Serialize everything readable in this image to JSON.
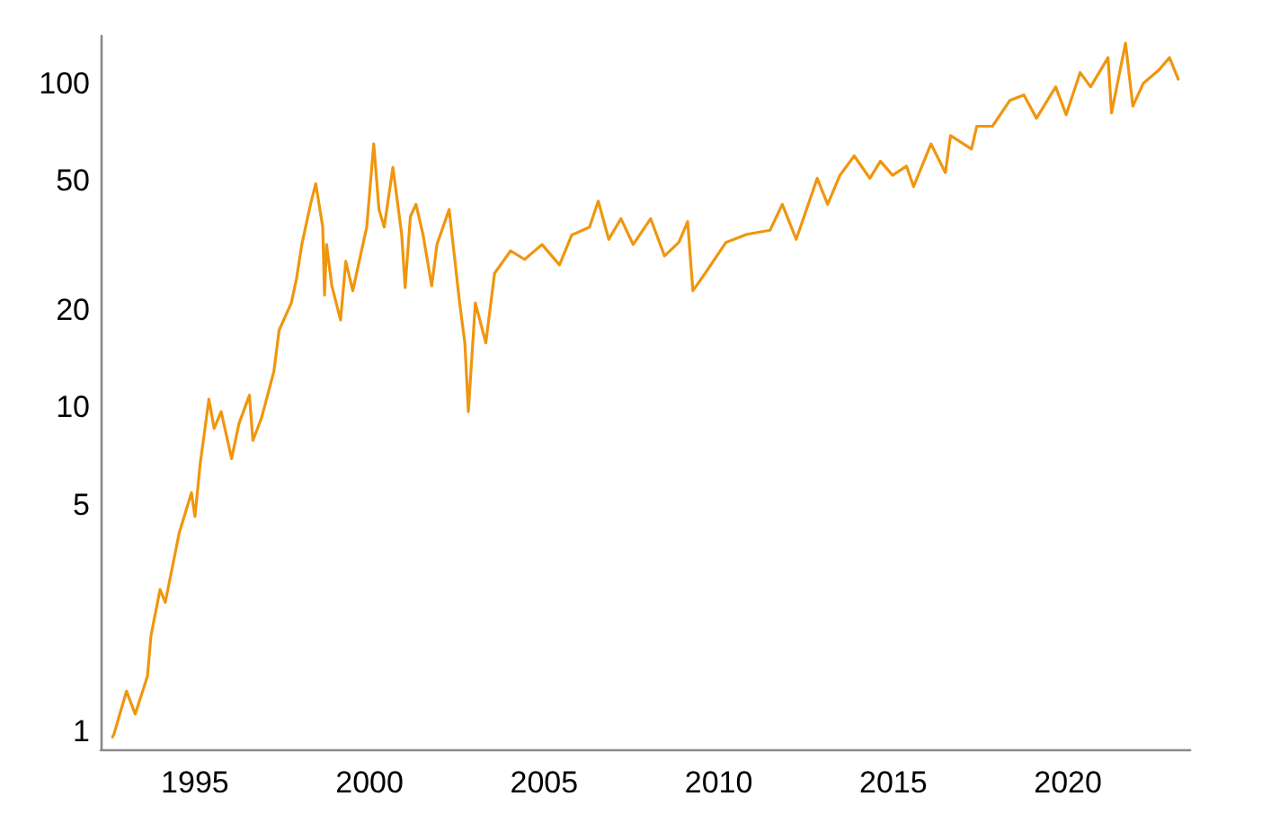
{
  "chart_data": {
    "type": "line",
    "log": "y",
    "grid": false,
    "marker": "none",
    "line_style": "solid",
    "xlim": [
      1992.3,
      2023.5
    ],
    "xticks": [
      1995,
      2000,
      2005,
      2010,
      2015,
      2020
    ],
    "ylim": [
      0.88,
      140
    ],
    "yticks": [
      1,
      5,
      10,
      20,
      50,
      100
    ],
    "series": [
      {
        "color": "#f0960e",
        "x": [
          1992.64,
          1992.68,
          1993.04,
          1993.29,
          1993.64,
          1993.74,
          1994.0,
          1994.15,
          1994.55,
          1994.9,
          1995.0,
          1995.15,
          1995.4,
          1995.55,
          1995.75,
          1996.05,
          1996.26,
          1996.56,
          1996.66,
          1996.91,
          1997.26,
          1997.41,
          1997.76,
          1997.91,
          1998.06,
          1998.31,
          1998.46,
          1998.66,
          1998.71,
          1998.77,
          1998.92,
          1999.17,
          1999.32,
          1999.52,
          1999.77,
          1999.92,
          2000.12,
          2000.27,
          2000.42,
          2000.67,
          2000.92,
          2001.02,
          2001.17,
          2001.33,
          2001.53,
          2001.78,
          2001.93,
          2002.28,
          2002.58,
          2002.73,
          2002.83,
          2003.03,
          2003.33,
          2003.58,
          2004.04,
          2004.44,
          2004.94,
          2005.44,
          2005.79,
          2006.3,
          2006.55,
          2006.85,
          2007.2,
          2007.55,
          2008.05,
          2008.45,
          2008.86,
          2009.11,
          2009.26,
          2009.61,
          2010.21,
          2010.81,
          2011.47,
          2011.82,
          2012.22,
          2012.82,
          2013.12,
          2013.47,
          2013.88,
          2014.33,
          2014.63,
          2014.98,
          2015.38,
          2015.58,
          2016.08,
          2016.49,
          2016.64,
          2017.24,
          2017.39,
          2017.84,
          2018.34,
          2018.74,
          2019.1,
          2019.65,
          2019.95,
          2020.35,
          2020.65,
          2021.15,
          2021.25,
          2021.65,
          2021.86,
          2022.16,
          2022.61,
          2022.91,
          2023.16
        ],
        "values": [
          0.96,
          0.98,
          1.33,
          1.13,
          1.48,
          1.97,
          2.74,
          2.5,
          4.1,
          5.45,
          4.6,
          6.7,
          10.6,
          8.6,
          9.7,
          6.95,
          8.9,
          10.9,
          7.9,
          9.3,
          12.9,
          17.3,
          21,
          25,
          31.8,
          42.3,
          49,
          36,
          22.2,
          31.8,
          23.7,
          18.6,
          28.2,
          22.9,
          30.4,
          36,
          65,
          40.8,
          36,
          55,
          34.2,
          23.4,
          38.8,
          42.3,
          34.2,
          23.7,
          31.8,
          40.8,
          21,
          15.8,
          9.7,
          21,
          15.8,
          25.9,
          30.4,
          28.6,
          31.8,
          27.5,
          34,
          36,
          43.3,
          33,
          38.2,
          31.8,
          38.2,
          29.3,
          32.3,
          37.4,
          22.9,
          25.9,
          32.3,
          34.2,
          35.2,
          42.3,
          33,
          50.9,
          42.3,
          52,
          59.7,
          50.9,
          57.5,
          52,
          55.5,
          48,
          65,
          53,
          69,
          62.7,
          73.7,
          73.7,
          88.6,
          92,
          78,
          97.5,
          80,
          108,
          97.5,
          120,
          81,
          133,
          85,
          100,
          110,
          120,
          103
        ]
      }
    ]
  }
}
